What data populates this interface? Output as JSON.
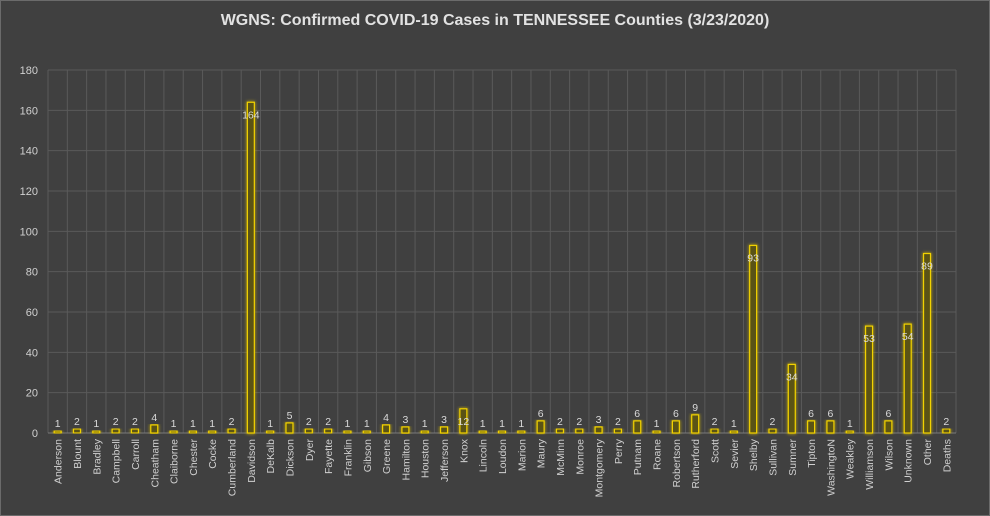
{
  "chart_data": {
    "type": "bar",
    "title": "WGNS: Confirmed COVID-19 Cases in TENNESSEE Counties (3/23/2020)",
    "xlabel": "",
    "ylabel": "",
    "ylim": [
      0,
      180
    ],
    "yticks": [
      0,
      20,
      40,
      60,
      80,
      100,
      120,
      140,
      160,
      180
    ],
    "grid": true,
    "legend": "none",
    "colors": {
      "bar_fill": "#5a5212",
      "bar_edge": "#f2d200",
      "glow": "#b9a400",
      "grid": "#5a5a5a",
      "background": "#404040"
    },
    "categories": [
      "Anderson",
      "Blount",
      "Bradley",
      "Campbell",
      "Carroll",
      "Cheatham",
      "Claiborne",
      "Chester",
      "Cocke",
      "Cumberland",
      "Davidson",
      "DeKalb",
      "Dickson",
      "Dyer",
      "Fayette",
      "Franklin",
      "Gibson",
      "Greene",
      "Hamilton",
      "Houston",
      "Jefferson",
      "Knox",
      "Lincoln",
      "Loudon",
      "Marion",
      "Maury",
      "McMinn",
      "Monroe",
      "Montgomery",
      "Perry",
      "Putnam",
      "Roane",
      "Robertson",
      "Rutherford",
      "Scott",
      "Sevier",
      "Shelby",
      "Sullivan",
      "Sumner",
      "Tipton",
      "WashingtoN",
      "Weakley",
      "Williamson",
      "Wilson",
      "Unknown",
      "Other",
      "Deaths"
    ],
    "values": [
      1,
      2,
      1,
      2,
      2,
      4,
      1,
      1,
      1,
      2,
      164,
      1,
      5,
      2,
      2,
      1,
      1,
      4,
      3,
      1,
      3,
      12,
      1,
      1,
      1,
      6,
      2,
      2,
      3,
      2,
      6,
      1,
      6,
      9,
      2,
      1,
      93,
      2,
      34,
      6,
      6,
      1,
      53,
      6,
      54,
      89,
      2
    ],
    "data_labels": [
      "1",
      "2",
      "1",
      "2",
      "2",
      "4",
      "1",
      "1",
      "1",
      "2",
      "164",
      "1",
      "5",
      "2",
      "2",
      "1",
      "1",
      "4",
      "3",
      "1",
      "3",
      "12",
      "1",
      "1",
      "1",
      "6",
      "2",
      "2",
      "3",
      "2",
      "6",
      "1",
      "6",
      "9",
      "2",
      "1",
      "93",
      "2",
      "34",
      "6",
      "6",
      "1",
      "53",
      "6",
      "54",
      "89",
      "2"
    ]
  }
}
